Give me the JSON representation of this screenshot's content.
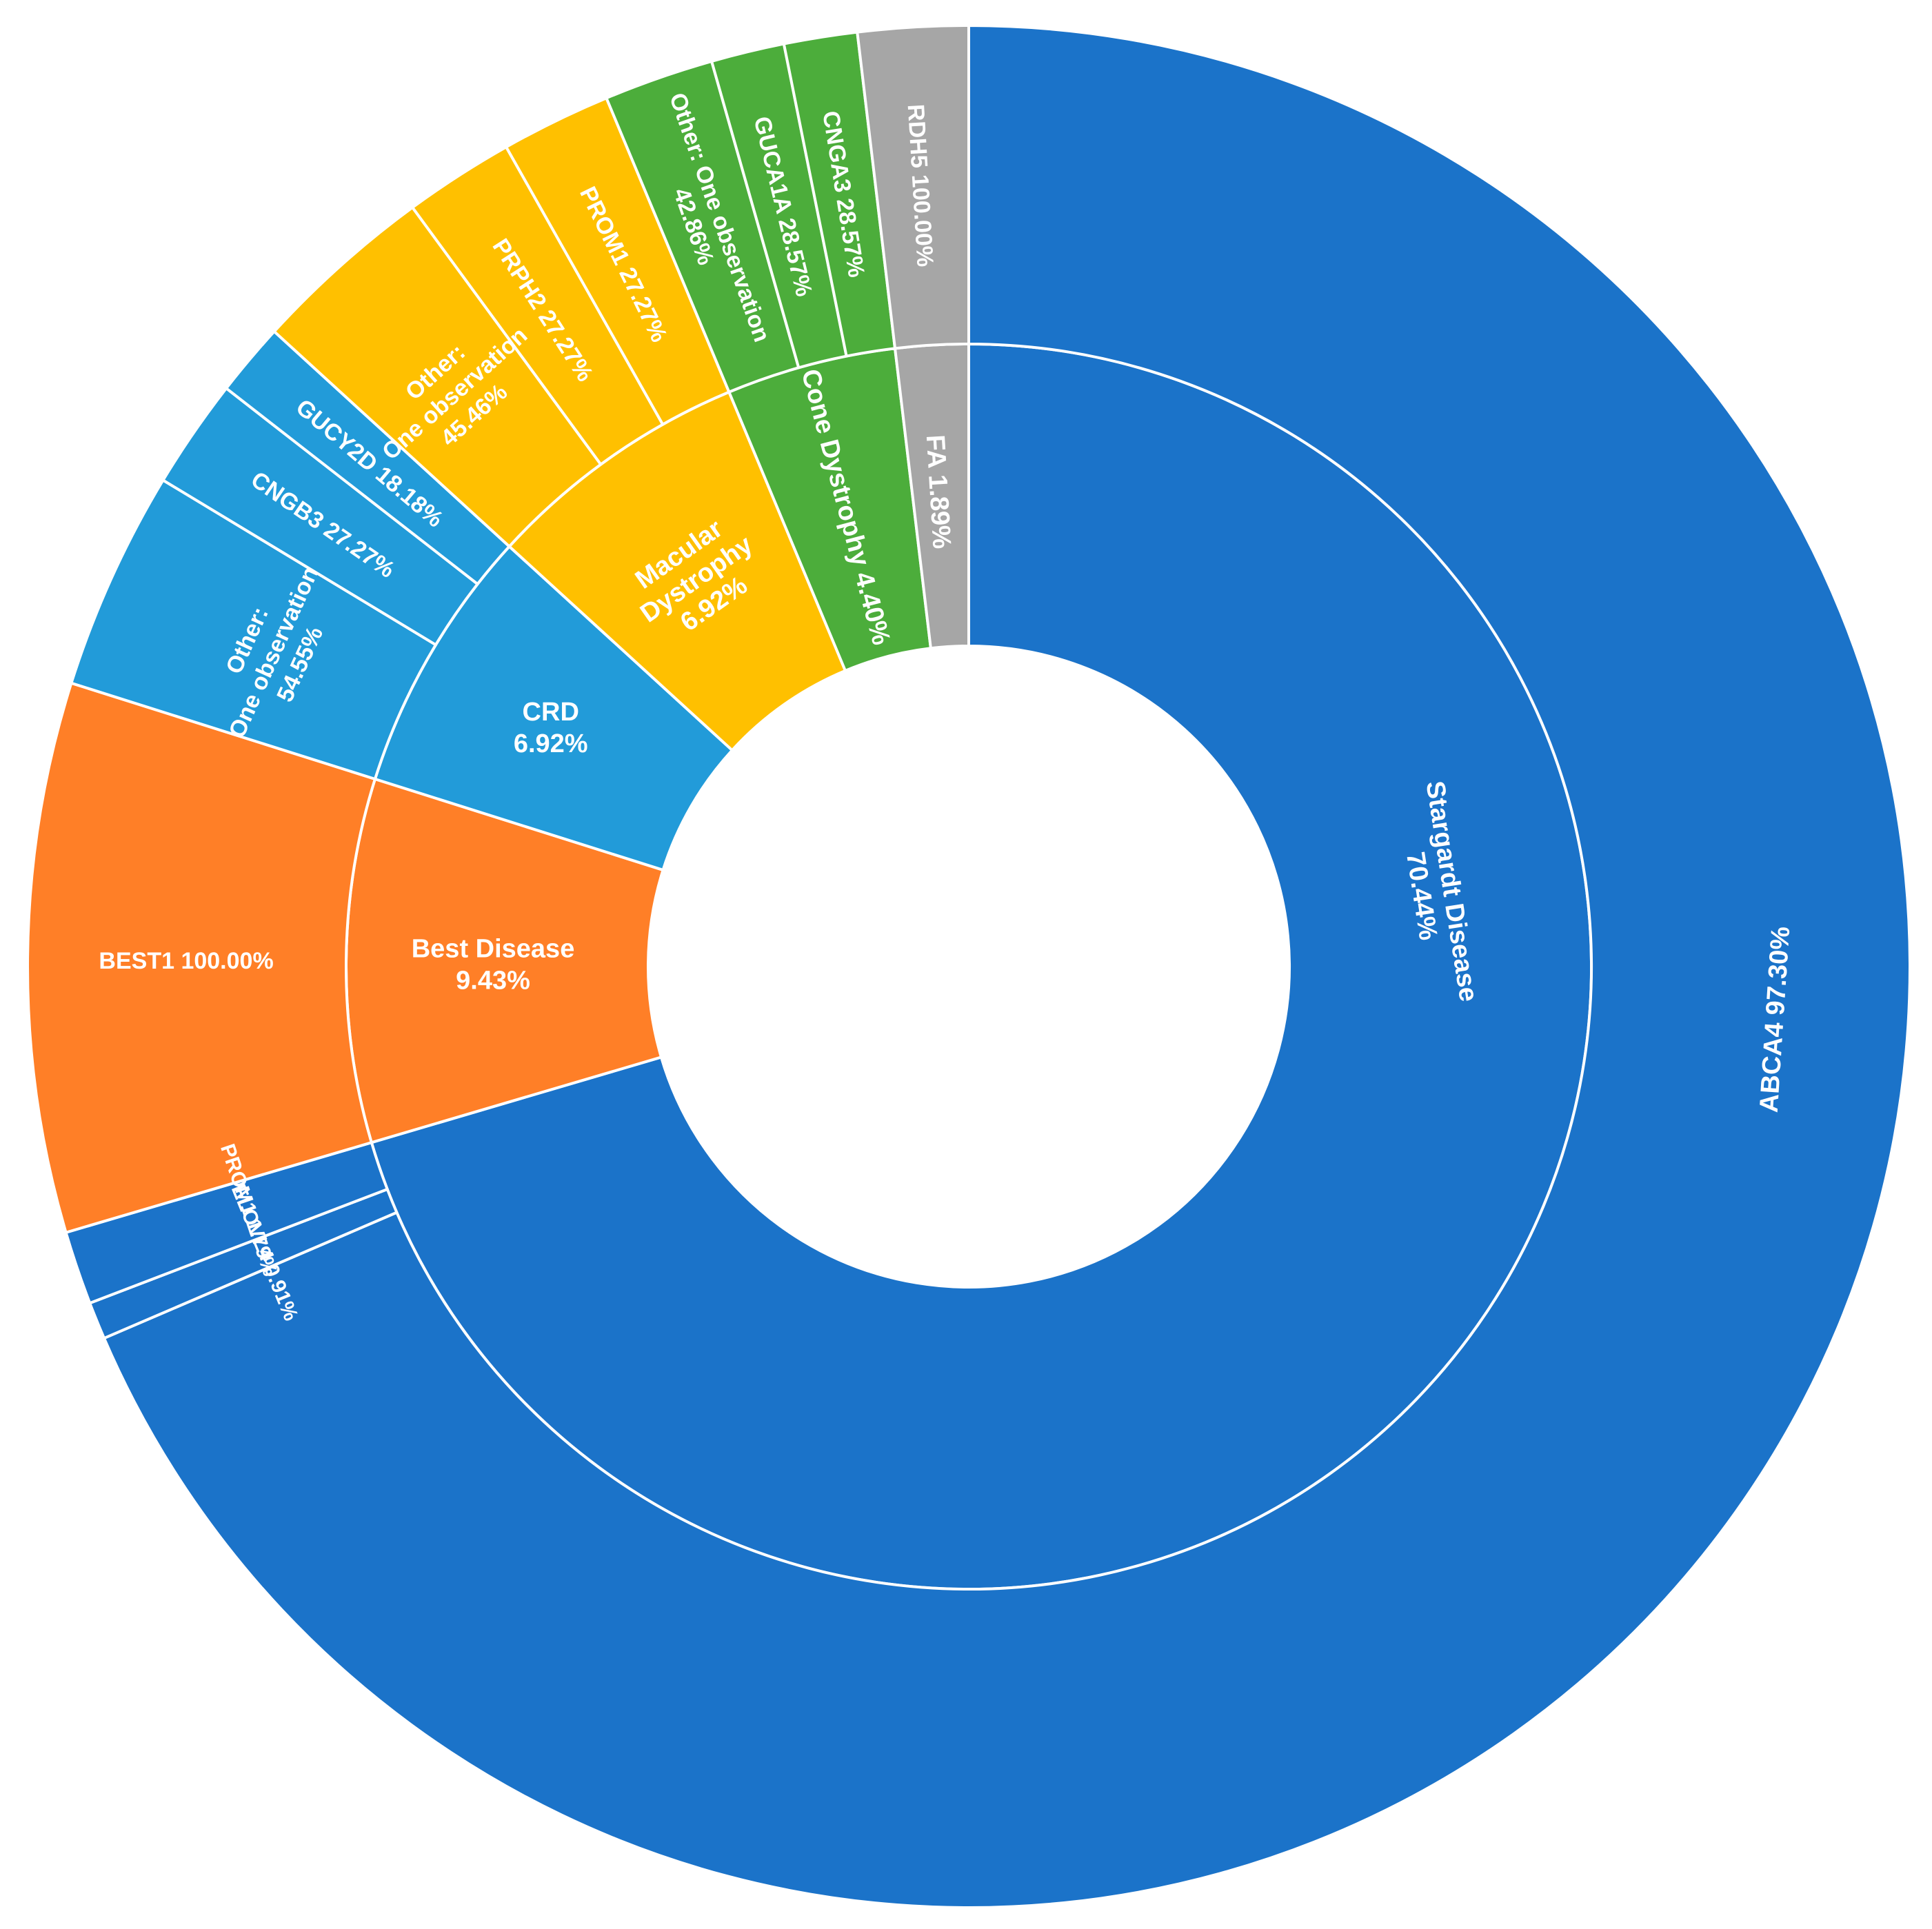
{
  "chart_data": {
    "type": "sunburst",
    "title": "",
    "inner": [
      {
        "name": "Stargardt Disease",
        "value": 70.44,
        "label": "Stargardt Disease\n70.44%",
        "color": "#1B73C9",
        "children": [
          {
            "name": "ABCA4",
            "value": 97.3,
            "label": "ABCA4 97.30%"
          },
          {
            "name": "ELOVL4",
            "value": 0.91,
            "label": "ELOVL4 0.91%"
          },
          {
            "name": "PROM1",
            "value": 1.79,
            "label": "PROM1 1.79%"
          }
        ]
      },
      {
        "name": "Best Disease",
        "value": 9.43,
        "label": "Best Disease\n9.43%",
        "color": "#FF7F27",
        "children": [
          {
            "name": "BEST1",
            "value": 100.0,
            "label": "BEST1 100.00%"
          }
        ]
      },
      {
        "name": "CRD",
        "value": 6.92,
        "label": "CRD\n6.92%",
        "color": "#229BD9",
        "children": [
          {
            "name": "Other: One observation",
            "value": 54.55,
            "label": "Other:\nOne observation\n54.55%"
          },
          {
            "name": "CNGB3",
            "value": 27.27,
            "label": "CNGB3 27.27%"
          },
          {
            "name": "GUCY2D",
            "value": 18.18,
            "label": "GUCY2D 18.18%"
          }
        ]
      },
      {
        "name": "Macular Dystrophy",
        "value": 6.92,
        "label": "Macular\nDystrophy\n6.92%",
        "color": "#FFC000",
        "children": [
          {
            "name": "Other: One observation",
            "value": 45.46,
            "label": "Other:\nOne observation\n45.46%"
          },
          {
            "name": "PRPH2",
            "value": 27.27,
            "label": "PRPH2 27.27%"
          },
          {
            "name": "PROM1",
            "value": 27.27,
            "label": "PROM1 27.27%"
          }
        ]
      },
      {
        "name": "Cone Dystrophy",
        "value": 4.4,
        "label": "Cone Dystrophy 4.40%",
        "color": "#4CAD3B",
        "children": [
          {
            "name": "Other: One observation",
            "value": 42.86,
            "label": "Other: One observation\n42.86%"
          },
          {
            "name": "GUCA1A",
            "value": 28.57,
            "label": "GUCA1A 28.57%"
          },
          {
            "name": "CNGA3",
            "value": 28.57,
            "label": "CNGA3 28.57%"
          }
        ]
      },
      {
        "name": "FA",
        "value": 1.89,
        "label": "FA 1.89%",
        "color": "#A6A6A6",
        "children": [
          {
            "name": "RDH5",
            "value": 100.0,
            "label": "RDH5 100.00%"
          }
        ]
      }
    ]
  }
}
